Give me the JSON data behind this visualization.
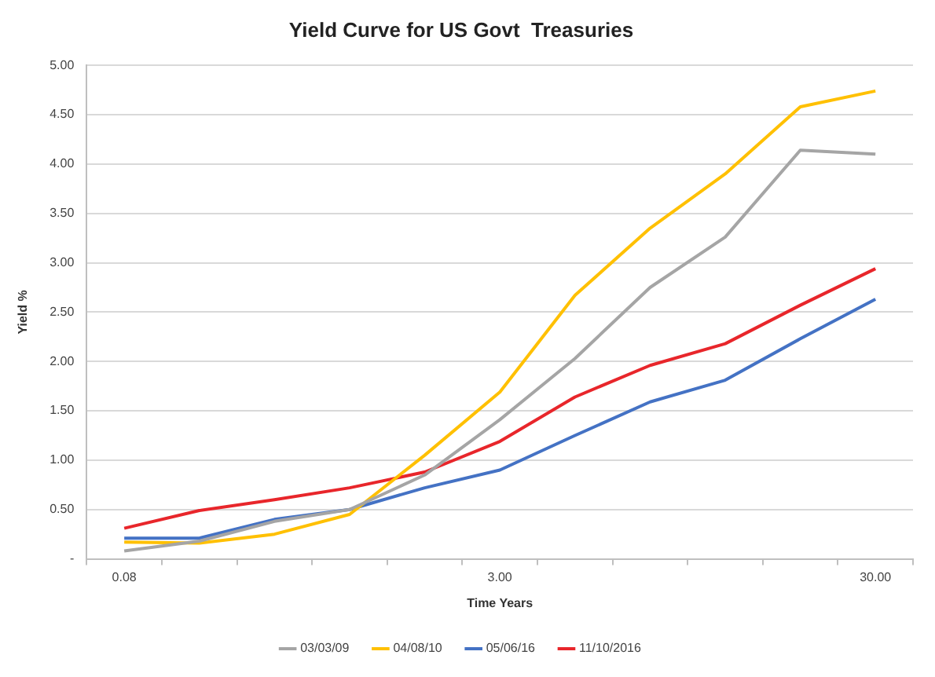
{
  "chart_data": {
    "type": "line",
    "title": "Yield Curve for US Govt  Treasuries",
    "xlabel": "Time Years",
    "ylabel": "Yield %",
    "categories": [
      "0.08",
      null,
      null,
      null,
      null,
      "3.00",
      null,
      null,
      null,
      null,
      "30.00"
    ],
    "ylim": [
      0,
      5
    ],
    "yticks": [
      {
        "value": 0,
        "label": "-"
      },
      {
        "value": 0.5,
        "label": "0.50"
      },
      {
        "value": 1,
        "label": "1.00"
      },
      {
        "value": 1.5,
        "label": "1.50"
      },
      {
        "value": 2,
        "label": "2.00"
      },
      {
        "value": 2.5,
        "label": "2.50"
      },
      {
        "value": 3,
        "label": "3.00"
      },
      {
        "value": 3.5,
        "label": "3.50"
      },
      {
        "value": 4,
        "label": "4.00"
      },
      {
        "value": 4.5,
        "label": "4.50"
      },
      {
        "value": 5,
        "label": "5.00"
      }
    ],
    "grid": "y",
    "legend": "bottom",
    "marker": "none",
    "line_style": "solid",
    "series": [
      {
        "name": "03/03/09",
        "color": "#a5a5a5",
        "values": [
          0.08,
          0.18,
          0.38,
          0.5,
          0.85,
          1.41,
          2.03,
          2.75,
          3.26,
          4.14,
          4.1
        ]
      },
      {
        "name": "04/08/10",
        "color": "#ffc000",
        "values": [
          0.17,
          0.16,
          0.25,
          0.45,
          1.05,
          1.69,
          2.67,
          3.35,
          3.9,
          4.58,
          4.74
        ]
      },
      {
        "name": "05/06/16",
        "color": "#4472c4",
        "values": [
          0.21,
          0.21,
          0.4,
          0.5,
          0.72,
          0.9,
          1.25,
          1.59,
          1.81,
          2.23,
          2.63
        ]
      },
      {
        "name": "11/10/2016",
        "color": "#e8262b",
        "values": [
          0.31,
          0.49,
          0.6,
          0.72,
          0.88,
          1.19,
          1.64,
          1.96,
          2.18,
          2.57,
          2.94
        ]
      }
    ]
  }
}
